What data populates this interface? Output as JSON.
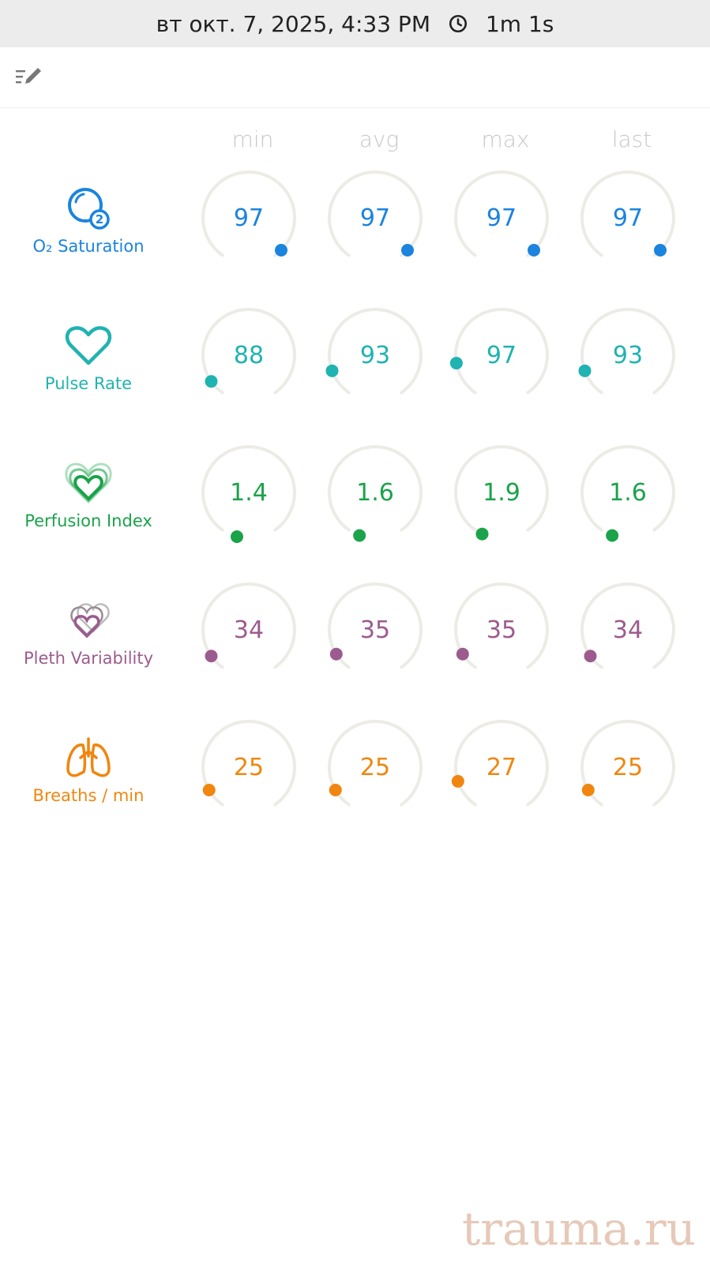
{
  "status_bar": {
    "datetime": "вт окт. 7, 2025, 4:33 PM",
    "duration": "1m 1s"
  },
  "columns": [
    "min",
    "avg",
    "max",
    "last"
  ],
  "colors": {
    "spo2": "#1a84de",
    "pr": "#1fb3b1",
    "pi": "#1aa34a",
    "pvi": "#9c5b8e",
    "rr": "#f0860f",
    "gauge_track": "#ecebe6",
    "header_text": "#c8c8c8"
  },
  "metrics": [
    {
      "id": "spo2",
      "label": "O₂ Saturation",
      "icon": "o2-icon",
      "values": [
        "97",
        "97",
        "97",
        "97"
      ],
      "dot_angles": [
        135,
        135,
        135,
        135
      ]
    },
    {
      "id": "pr",
      "label": "Pulse Rate",
      "icon": "heart-icon",
      "values": [
        "88",
        "93",
        "97",
        "93"
      ],
      "dot_angles": [
        -125,
        -110,
        -100,
        -110
      ]
    },
    {
      "id": "pi",
      "label": "Perfusion Index",
      "icon": "perfusion-hearts-icon",
      "values": [
        "1.4",
        "1.6",
        "1.9",
        "1.6"
      ],
      "dot_angles": [
        -165,
        -160,
        -155,
        -160
      ]
    },
    {
      "id": "pvi",
      "label": "Pleth Variability",
      "icon": "pleth-hearts-icon",
      "values": [
        "34",
        "35",
        "35",
        "34"
      ],
      "dot_angles": [
        -125,
        -122,
        -122,
        -125
      ]
    },
    {
      "id": "rr",
      "label": "Breaths / min",
      "icon": "lungs-icon",
      "values": [
        "25",
        "25",
        "27",
        "25"
      ],
      "dot_angles": [
        -120,
        -120,
        -108,
        -120
      ]
    }
  ],
  "watermark": "trauma.ru"
}
